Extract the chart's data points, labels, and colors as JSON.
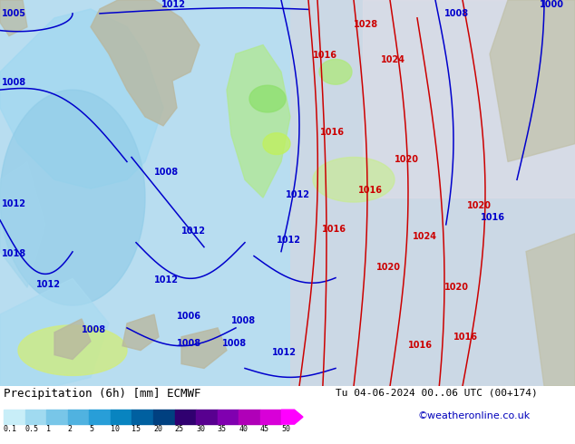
{
  "title_left": "Precipitation (6h) [mm] ECMWF",
  "title_right": "Tu 04-06-2024 00..06 UTC (00+174)",
  "credit": "©weatheronline.co.uk",
  "colorbar_levels": [
    0.1,
    0.5,
    1,
    2,
    5,
    10,
    15,
    20,
    25,
    30,
    35,
    40,
    45,
    50
  ],
  "colorbar_colors": [
    "#c8eef8",
    "#a0daf0",
    "#78c6e8",
    "#50b2e0",
    "#289ed8",
    "#0884c0",
    "#0060a0",
    "#004080",
    "#300070",
    "#580090",
    "#8000b0",
    "#b000b8",
    "#d800d8",
    "#ff00ff"
  ],
  "bg_color": "#ffffff",
  "ocean_color": "#b8ddf0",
  "land_color": "#c8c8b0",
  "high_bg_color": "#e8e0e8",
  "green_precip": "#a8e890",
  "yellow_precip": "#d8f070",
  "title_fontsize": 9,
  "credit_fontsize": 8,
  "isobar_fontsize": 7,
  "blue_isobar_color": "#0000cc",
  "red_isobar_color": "#cc0000"
}
